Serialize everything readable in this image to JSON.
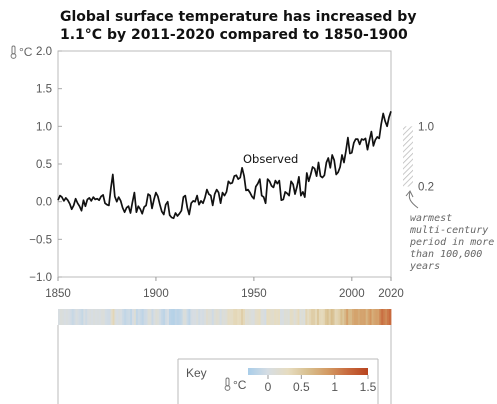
{
  "title": "Global surface temperature has increased by 1.1°C by 2011-2020 compared to 1850-1900",
  "unit_label": "°C",
  "observed_label": "Observed",
  "warmest_period": {
    "range": [
      0.2,
      1.0
    ],
    "top_label": "1.0",
    "bottom_label": "0.2",
    "note_lines": [
      "warmest",
      "multi-century",
      "period in more",
      "than 100,000",
      "years"
    ]
  },
  "key": {
    "label": "Key",
    "unit": "°C",
    "ticks": [
      "0",
      "0.5",
      "1",
      "1.5"
    ],
    "tick_values": [
      0,
      0.5,
      1,
      1.5
    ],
    "colors": [
      "#a9cde9",
      "#d6dde3",
      "#e6dcc0",
      "#d8bf8f",
      "#d39a63",
      "#c86a3e",
      "#b8441f"
    ]
  },
  "colors": {
    "line": "#111111",
    "hatch": "#bbbbbb",
    "frame": "#bbbbbb"
  },
  "chart_data": {
    "type": "line",
    "title": "Global surface temperature has increased by 1.1°C by 2011-2020 compared to 1850-1900",
    "xlabel": "",
    "ylabel": "°C",
    "xlim": [
      1850,
      2020
    ],
    "ylim": [
      -1.0,
      2.0
    ],
    "xticks": [
      1850,
      1900,
      1950,
      2000,
      2020
    ],
    "yticks": [
      "2.0",
      "1.5",
      "1.0",
      "0.5",
      "0.0",
      "−0.5",
      "−1.0"
    ],
    "ytick_values": [
      2.0,
      1.5,
      1.0,
      0.5,
      0.0,
      -0.5,
      -1.0
    ],
    "grid": false,
    "series": [
      {
        "name": "Observed",
        "x": [
          1850,
          1851,
          1852,
          1853,
          1854,
          1855,
          1856,
          1857,
          1858,
          1859,
          1860,
          1861,
          1862,
          1863,
          1864,
          1865,
          1866,
          1867,
          1868,
          1869,
          1870,
          1871,
          1872,
          1873,
          1874,
          1875,
          1876,
          1877,
          1878,
          1879,
          1880,
          1881,
          1882,
          1883,
          1884,
          1885,
          1886,
          1887,
          1888,
          1889,
          1890,
          1891,
          1892,
          1893,
          1894,
          1895,
          1896,
          1897,
          1898,
          1899,
          1900,
          1901,
          1902,
          1903,
          1904,
          1905,
          1906,
          1907,
          1908,
          1909,
          1910,
          1911,
          1912,
          1913,
          1914,
          1915,
          1916,
          1917,
          1918,
          1919,
          1920,
          1921,
          1922,
          1923,
          1924,
          1925,
          1926,
          1927,
          1928,
          1929,
          1930,
          1931,
          1932,
          1933,
          1934,
          1935,
          1936,
          1937,
          1938,
          1939,
          1940,
          1941,
          1942,
          1943,
          1944,
          1945,
          1946,
          1947,
          1948,
          1949,
          1950,
          1951,
          1952,
          1953,
          1954,
          1955,
          1956,
          1957,
          1958,
          1959,
          1960,
          1961,
          1962,
          1963,
          1964,
          1965,
          1966,
          1967,
          1968,
          1969,
          1970,
          1971,
          1972,
          1973,
          1974,
          1975,
          1976,
          1977,
          1978,
          1979,
          1980,
          1981,
          1982,
          1983,
          1984,
          1985,
          1986,
          1987,
          1988,
          1989,
          1990,
          1991,
          1992,
          1993,
          1994,
          1995,
          1996,
          1997,
          1998,
          1999,
          2000,
          2001,
          2002,
          2003,
          2004,
          2005,
          2006,
          2007,
          2008,
          2009,
          2010,
          2011,
          2012,
          2013,
          2014,
          2015,
          2016,
          2017,
          2018,
          2019,
          2020
        ],
        "values": [
          0.02,
          0.08,
          0.06,
          0.01,
          0.05,
          0.02,
          -0.03,
          -0.1,
          -0.05,
          0.04,
          -0.02,
          -0.06,
          -0.12,
          0.02,
          -0.06,
          0.03,
          0.05,
          0.01,
          0.06,
          0.03,
          0.04,
          0.02,
          0.07,
          0.09,
          -0.02,
          -0.04,
          -0.05,
          0.18,
          0.36,
          0.07,
          0.0,
          0.06,
          0.01,
          -0.08,
          -0.14,
          -0.08,
          -0.06,
          -0.15,
          -0.01,
          0.12,
          -0.14,
          -0.06,
          -0.1,
          -0.16,
          -0.07,
          -0.05,
          0.1,
          0.08,
          -0.09,
          0.03,
          0.12,
          0.07,
          -0.04,
          -0.13,
          -0.17,
          -0.04,
          0.0,
          -0.18,
          -0.21,
          -0.22,
          -0.15,
          -0.19,
          -0.16,
          -0.12,
          0.06,
          0.08,
          -0.08,
          -0.17,
          -0.02,
          0.01,
          0.0,
          0.08,
          -0.04,
          0.01,
          -0.02,
          0.05,
          0.16,
          0.1,
          0.08,
          -0.05,
          0.1,
          0.16,
          0.12,
          -0.02,
          0.12,
          0.08,
          0.13,
          0.27,
          0.24,
          0.25,
          0.34,
          0.35,
          0.3,
          0.32,
          0.45,
          0.34,
          0.15,
          0.16,
          0.12,
          0.07,
          0.04,
          0.2,
          0.24,
          0.3,
          0.08,
          0.06,
          -0.02,
          0.3,
          0.27,
          0.21,
          0.19,
          0.28,
          0.24,
          0.28,
          0.02,
          0.03,
          0.13,
          0.11,
          0.08,
          0.27,
          0.23,
          0.1,
          0.2,
          0.33,
          0.08,
          0.13,
          0.06,
          0.38,
          0.27,
          0.36,
          0.46,
          0.44,
          0.34,
          0.52,
          0.34,
          0.32,
          0.35,
          0.52,
          0.58,
          0.45,
          0.62,
          0.55,
          0.36,
          0.39,
          0.46,
          0.62,
          0.52,
          0.67,
          0.85,
          0.64,
          0.65,
          0.78,
          0.83,
          0.83,
          0.76,
          0.83,
          0.82,
          0.84,
          0.69,
          0.82,
          0.93,
          0.74,
          0.82,
          0.86,
          0.84,
          1.03,
          1.17,
          1.07,
          1.0,
          1.12,
          1.2
        ]
      }
    ]
  }
}
